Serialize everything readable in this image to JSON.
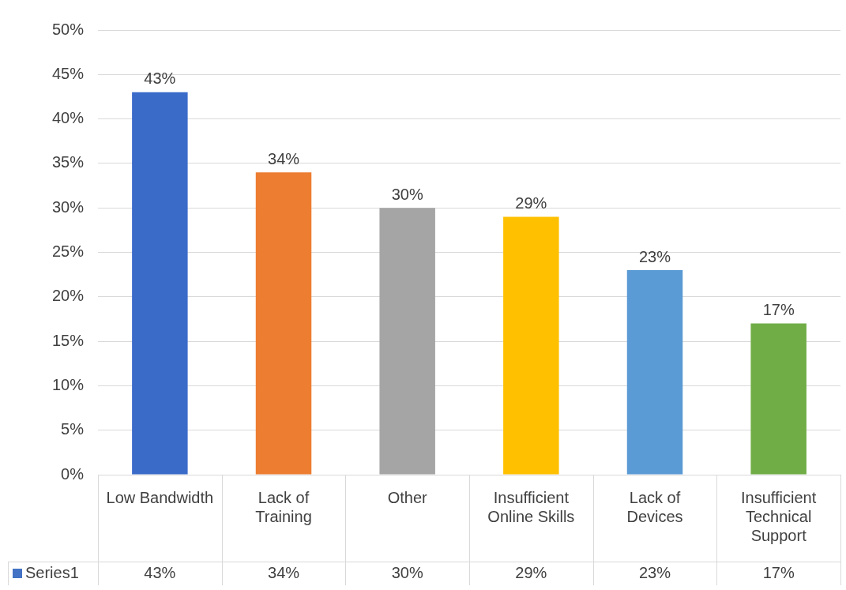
{
  "chart_data": {
    "type": "bar",
    "categories": [
      "Low Bandwidth",
      "Lack of Training",
      "Other",
      "Insufficient Online Skills",
      "Lack of Devices",
      "Insufficient Technical Support"
    ],
    "series": [
      {
        "name": "Series1",
        "color": "#4472c4",
        "colors": [
          "#3a6bc9",
          "#ed7d31",
          "#a5a5a5",
          "#ffc000",
          "#5b9bd5",
          "#70ad47"
        ],
        "values": [
          43,
          34,
          30,
          29,
          23,
          17
        ],
        "value_labels": [
          "43%",
          "34%",
          "30%",
          "29%",
          "23%",
          "17%"
        ]
      }
    ],
    "ylim": [
      0,
      50
    ],
    "yticks": [
      {
        "value": 0,
        "label": "0%"
      },
      {
        "value": 5,
        "label": "5%"
      },
      {
        "value": 10,
        "label": "10%"
      },
      {
        "value": 15,
        "label": "15%"
      },
      {
        "value": 20,
        "label": "20%"
      },
      {
        "value": 25,
        "label": "25%"
      },
      {
        "value": 30,
        "label": "30%"
      },
      {
        "value": 35,
        "label": "35%"
      },
      {
        "value": 40,
        "label": "40%"
      },
      {
        "value": 45,
        "label": "45%"
      },
      {
        "value": 50,
        "label": "50%"
      }
    ],
    "grid": "y",
    "legend": "bottom"
  }
}
